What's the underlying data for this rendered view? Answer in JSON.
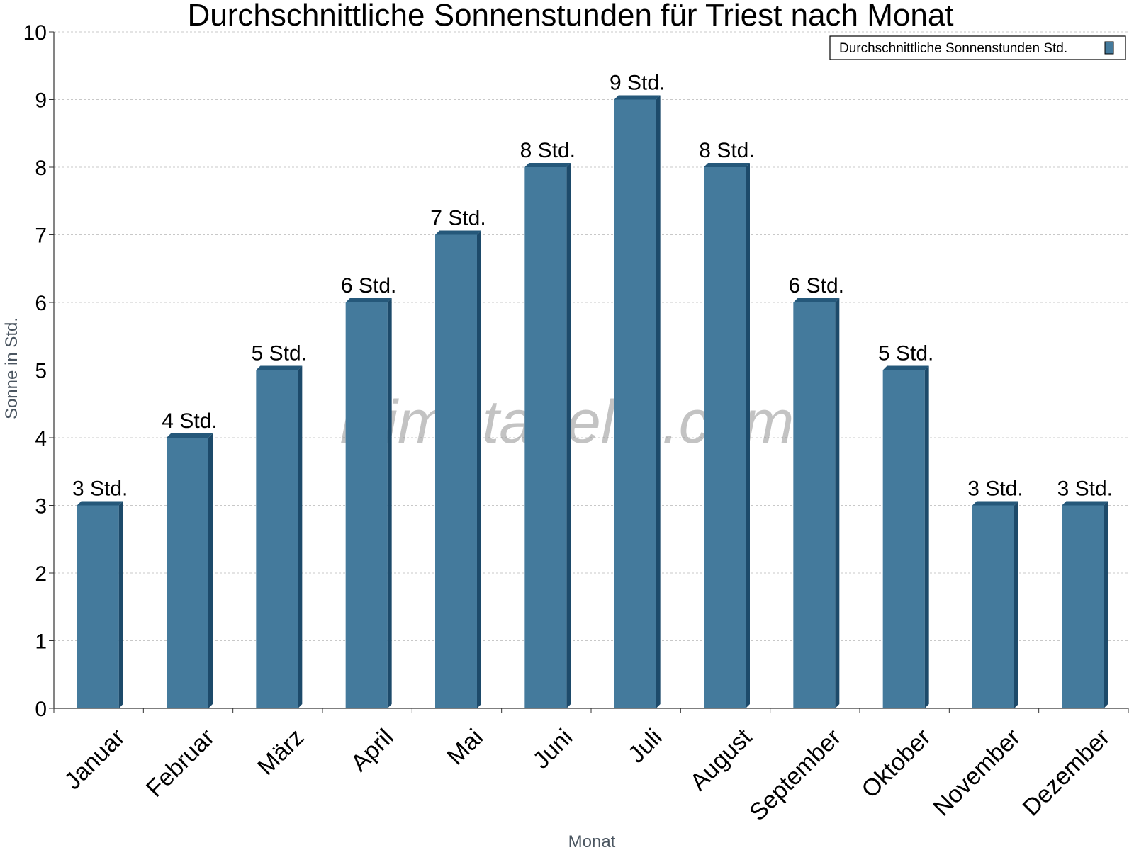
{
  "watermark": "klimatabelle.com",
  "colors": {
    "bar_front": "#447a9c",
    "bar_side": "#1d4a6a",
    "bar_top": "#25587a",
    "grid": "#c8c8c8",
    "axis": "#333333"
  },
  "chart_data": {
    "type": "bar",
    "title": "Durchschnittliche Sonnenstunden für Triest nach Monat",
    "xlabel": "Monat",
    "ylabel": "Sonne in Std.",
    "ylim": [
      0,
      10
    ],
    "yticks": [
      "0",
      "1",
      "2",
      "3",
      "4",
      "5",
      "6",
      "7",
      "8",
      "9",
      "10"
    ],
    "grid": true,
    "legend_position": "top-right",
    "categories": [
      "Januar",
      "Februar",
      "März",
      "April",
      "Mai",
      "Juni",
      "Juli",
      "August",
      "September",
      "Oktober",
      "November",
      "Dezember"
    ],
    "series": [
      {
        "name": "Durchschnittliche Sonnenstunden Std.",
        "values": [
          3,
          4,
          5,
          6,
          7,
          8,
          9,
          8,
          6,
          5,
          3,
          3
        ],
        "labels": [
          "3 Std.",
          "4 Std.",
          "5 Std.",
          "6 Std.",
          "7 Std.",
          "8 Std.",
          "9 Std.",
          "8 Std.",
          "6 Std.",
          "5 Std.",
          "3 Std.",
          "3 Std."
        ]
      }
    ]
  }
}
